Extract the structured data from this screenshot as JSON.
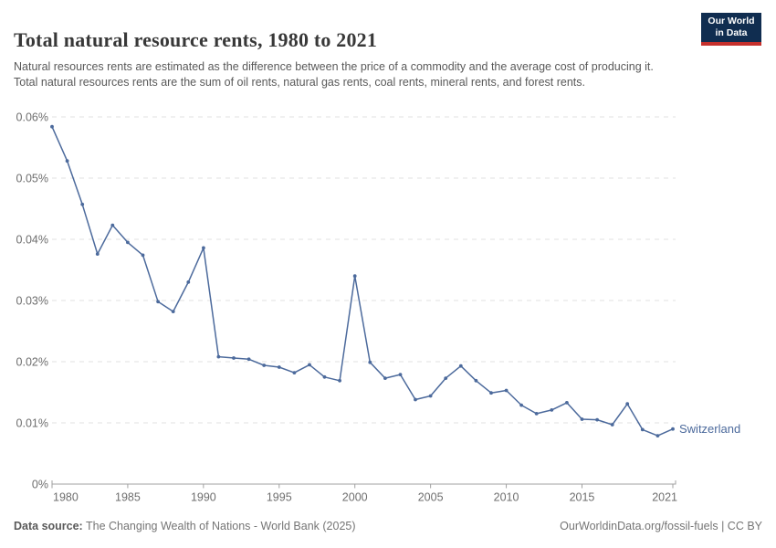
{
  "header": {
    "title": "Total natural resource rents, 1980 to 2021",
    "subtitle": "Natural resources rents are estimated as the difference between the price of a commodity and the average cost of producing it. Total natural resources rents are the sum of oil rents, natural gas rents, coal rents, mineral rents, and forest rents."
  },
  "logo": {
    "line1": "Our World",
    "line2": "in Data",
    "background_color": "#102d50",
    "accent_color": "#c5302c"
  },
  "chart_data": {
    "type": "line",
    "title": "Total natural resource rents, 1980 to 2021",
    "xlabel": "",
    "ylabel": "",
    "x": [
      1980,
      1981,
      1982,
      1983,
      1984,
      1985,
      1986,
      1987,
      1988,
      1989,
      1990,
      1991,
      1992,
      1993,
      1994,
      1995,
      1996,
      1997,
      1998,
      1999,
      2000,
      2001,
      2002,
      2003,
      2004,
      2005,
      2006,
      2007,
      2008,
      2009,
      2010,
      2011,
      2012,
      2013,
      2014,
      2015,
      2016,
      2017,
      2018,
      2019,
      2020,
      2021
    ],
    "series": [
      {
        "name": "Switzerland",
        "color": "#4c6a9c",
        "values": [
          0.0584,
          0.0528,
          0.0457,
          0.0376,
          0.0423,
          0.0395,
          0.0374,
          0.0298,
          0.0282,
          0.033,
          0.0386,
          0.0208,
          0.0206,
          0.0204,
          0.0194,
          0.0191,
          0.0182,
          0.0195,
          0.0175,
          0.0169,
          0.034,
          0.0199,
          0.0173,
          0.0179,
          0.0138,
          0.0144,
          0.0173,
          0.0193,
          0.0169,
          0.0149,
          0.0153,
          0.0129,
          0.0115,
          0.0121,
          0.0133,
          0.0106,
          0.0105,
          0.0097,
          0.0131,
          0.0089,
          0.0079,
          0.009
        ]
      }
    ],
    "xlim": [
      1980,
      2021
    ],
    "ylim": [
      0,
      0.06
    ],
    "yticks": [
      0,
      0.01,
      0.02,
      0.03,
      0.04,
      0.05,
      0.06
    ],
    "ytick_labels": [
      "0%",
      "0.01%",
      "0.02%",
      "0.03%",
      "0.04%",
      "0.05%",
      "0.06%"
    ],
    "xticks": [
      1980,
      1985,
      1990,
      1995,
      2000,
      2005,
      2010,
      2015,
      2021
    ],
    "xtick_labels": [
      "1980",
      "1985",
      "1990",
      "1995",
      "2000",
      "2005",
      "2010",
      "2015",
      "2021"
    ],
    "grid": "horizontal-dashed",
    "legend_position": "end-of-line",
    "entity_label": "Switzerland"
  },
  "style": {
    "line_color": "#4c6a9c",
    "grid_color": "#e0e0e0",
    "axis_color": "#a1a1a1",
    "tick_label_color": "#6e6e6e"
  },
  "footer": {
    "data_source_label": "Data source:",
    "data_source_value": " The Changing Wealth of Nations - World Bank (2025)",
    "right_text": "OurWorldinData.org/fossil-fuels | CC BY"
  }
}
